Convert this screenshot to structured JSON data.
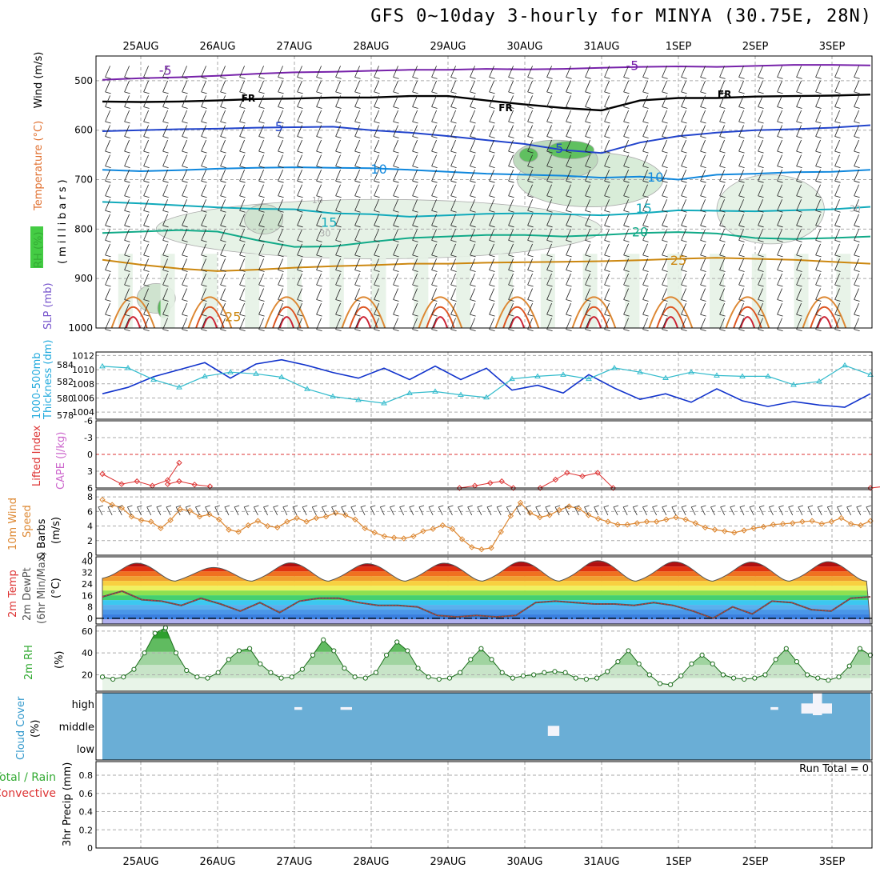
{
  "page": {
    "title": "GFS 0~10day 3-hourly for MINYA (30.75E, 28N)"
  },
  "chart_data": [
    {
      "panel": "upper-air",
      "type": "line",
      "ylabels": [
        {
          "text": "RH (%)",
          "color": "#33aa33"
        },
        {
          "text": "Temperature (°C)",
          "color": "#e07030"
        },
        {
          "text": "Wind (m/s)",
          "color": "#000000"
        },
        {
          "text": "(millibars)",
          "color": "#000000"
        }
      ],
      "x_dates": [
        "25AUG",
        "26AUG",
        "27AUG",
        "28AUG",
        "29AUG",
        "30AUG",
        "31AUG",
        "1SEP",
        "2SEP",
        "3SEP"
      ],
      "x_days": [
        0.5,
        1.5,
        2.5,
        3.5,
        4.5,
        5.5,
        6.5,
        7.5,
        8.5,
        9.5
      ],
      "xlim": [
        0,
        10
      ],
      "yticks": [
        500,
        600,
        700,
        800,
        900,
        1000
      ],
      "ylim": [
        450,
        1000
      ],
      "isotherms": [
        {
          "label": "-5",
          "color": "#7722aa",
          "y": [
            498,
            495,
            493,
            490,
            486,
            483,
            482,
            480,
            478,
            478,
            476,
            477,
            476,
            474,
            472,
            471,
            472,
            470,
            468,
            468,
            469
          ]
        },
        {
          "label": "FR",
          "color": "#000000",
          "y": [
            542,
            543,
            542,
            540,
            537,
            536,
            534,
            534,
            531,
            531,
            540,
            548,
            555,
            560,
            540,
            535,
            535,
            532,
            531,
            530,
            528
          ]
        },
        {
          "label": "5",
          "color": "#2244cc",
          "y": [
            602,
            600,
            598,
            597,
            595,
            594,
            593,
            600,
            605,
            612,
            620,
            628,
            640,
            646,
            625,
            612,
            605,
            600,
            598,
            595,
            590
          ]
        },
        {
          "label": "10",
          "color": "#1188dd",
          "y": [
            680,
            683,
            681,
            678,
            676,
            675,
            676,
            677,
            680,
            684,
            688,
            690,
            692,
            696,
            694,
            700,
            690,
            688,
            685,
            684,
            680
          ]
        },
        {
          "label": "15",
          "color": "#11aabb",
          "y": [
            745,
            748,
            752,
            756,
            759,
            760,
            768,
            770,
            775,
            772,
            769,
            768,
            770,
            772,
            768,
            762,
            763,
            764,
            762,
            760,
            755
          ]
        },
        {
          "label": "20",
          "color": "#11aa88",
          "y": [
            808,
            805,
            802,
            805,
            822,
            836,
            835,
            826,
            818,
            815,
            812,
            812,
            815,
            812,
            808,
            806,
            809,
            818,
            820,
            818,
            815
          ]
        },
        {
          "label": "25",
          "color": "#cc8811",
          "y": [
            862,
            872,
            880,
            885,
            882,
            878,
            875,
            873,
            870,
            870,
            868,
            867,
            866,
            865,
            863,
            860,
            858,
            860,
            862,
            866,
            870
          ]
        }
      ],
      "annotations": [
        "-5",
        "-5",
        "FR",
        "FR",
        "FR",
        "5",
        "5",
        "10",
        "10",
        "15",
        "15",
        "20",
        "25",
        "25",
        "10",
        "30",
        "30"
      ]
    },
    {
      "panel": "slp-thickness",
      "type": "line",
      "ylabels": [
        {
          "text": "1000-500mb",
          "color": "#22aadd"
        },
        {
          "text": "Thickness (dm)",
          "color": "#22aadd"
        },
        {
          "text": "SLP (mb)",
          "color": "#7755cc"
        }
      ],
      "yticks_left": [
        "578",
        "580",
        "582",
        "584"
      ],
      "yticks_right": [
        "1004",
        "1006",
        "1008",
        "1010",
        "1012"
      ],
      "ylim_left": [
        577.5,
        585.5
      ],
      "ylim_right": [
        1003,
        1012.5
      ],
      "series": [
        {
          "color": "#1133cc",
          "values": [
            1006.6,
            1007.5,
            1009,
            1010,
            1011,
            1008.8,
            1010.8,
            1011.4,
            1010.6,
            1009.6,
            1008.8,
            1010.2,
            1008.6,
            1010.5,
            1008.6,
            1010.2,
            1007.1,
            1007.8,
            1006.7,
            1009.3,
            1007.4,
            1005.8,
            1006.6,
            1005.4,
            1007.3,
            1005.6,
            1004.8,
            1005.5,
            1005,
            1004.7,
            1006.6
          ]
        },
        {
          "color": "#33bbcc",
          "values": [
            583.8,
            583.6,
            582.2,
            581.3,
            582.6,
            583.1,
            582.9,
            582.5,
            581.1,
            580.2,
            579.8,
            579.4,
            580.6,
            580.8,
            580.4,
            580.1,
            582.3,
            582.6,
            582.8,
            582.3,
            583.6,
            583.1,
            582.4,
            583.1,
            582.7,
            582.6,
            582.6,
            581.6,
            582.0,
            583.9,
            582.8
          ]
        }
      ]
    },
    {
      "panel": "lifted-index",
      "type": "line",
      "ylabels": [
        {
          "text": "Lifted Index",
          "color": "#dd3333"
        },
        {
          "text": "CAPE (J/kg)",
          "color": "#cc66cc"
        }
      ],
      "yticks": [
        "-6",
        "-3",
        "0",
        "3",
        "6"
      ],
      "ylim": [
        -6,
        6
      ],
      "series": [
        {
          "color": "#dd3333",
          "segments": [
            {
              "x": [
                0,
                0.25,
                0.45,
                0.65,
                0.85,
                1.0
              ],
              "y": [
                3.5,
                5.3,
                4.8,
                5.6,
                4.6,
                1.5
              ]
            },
            {
              "x": [
                0.85,
                1.0,
                1.2,
                1.4
              ],
              "y": [
                5.3,
                4.8,
                5.4,
                5.7
              ]
            },
            {
              "x": [
                4.65,
                4.85,
                5.05,
                5.2,
                5.35
              ],
              "y": [
                6,
                5.6,
                5.1,
                4.8,
                6
              ]
            },
            {
              "x": [
                5.7,
                5.9,
                6.05,
                6.25,
                6.45,
                6.65
              ],
              "y": [
                6,
                4.5,
                3.3,
                3.9,
                3.3,
                6
              ]
            },
            {
              "x": [
                10.0,
                10.2
              ],
              "y": [
                6,
                5.7
              ]
            }
          ]
        }
      ]
    },
    {
      "panel": "10m-wind",
      "type": "line",
      "ylabels": [
        {
          "text": "10m Wind",
          "color": "#dd8833"
        },
        {
          "text": "Speed",
          "color": "#dd8833"
        },
        {
          "text": "& Barbs",
          "color": "#000000"
        },
        {
          "text": "(m/s)",
          "color": "#000000"
        }
      ],
      "yticks": [
        "0",
        "2",
        "4",
        "6",
        "8"
      ],
      "ylim": [
        0,
        9
      ],
      "series": [
        {
          "color": "#dd8833",
          "values": [
            7.6,
            6.9,
            6.5,
            5.3,
            4.8,
            4.6,
            3.7,
            4.8,
            6.3,
            6.1,
            5.3,
            5.6,
            4.9,
            3.5,
            3.2,
            4.1,
            4.7,
            4.0,
            3.8,
            4.6,
            5.1,
            4.6,
            5.1,
            5.3,
            5.8,
            5.5,
            4.9,
            3.7,
            3.1,
            2.6,
            2.4,
            2.3,
            2.6,
            3.3,
            3.6,
            4.1,
            3.6,
            2.2,
            1.1,
            0.8,
            1.0,
            3.2,
            5.4,
            7.2,
            5.8,
            5.2,
            5.5,
            6.2,
            6.7,
            6.4,
            5.5,
            5.0,
            4.6,
            4.2,
            4.2,
            4.4,
            4.6,
            4.6,
            4.9,
            5.2,
            4.9,
            4.4,
            3.8,
            3.5,
            3.3,
            3.1,
            3.4,
            3.7,
            3.9,
            4.2,
            4.3,
            4.4,
            4.6,
            4.7,
            4.3,
            4.6,
            5.1,
            4.3,
            4.1,
            4.7
          ]
        }
      ]
    },
    {
      "panel": "2m-temp",
      "type": "area",
      "ylabels": [
        {
          "text": "2m Temp",
          "color": "#dd3333"
        },
        {
          "text": "2m DewPt",
          "color": "#555555"
        },
        {
          "text": "(6hr Min/Max)",
          "color": "#555555"
        },
        {
          "text": "(°C)",
          "color": "#000000"
        }
      ],
      "yticks": [
        "0",
        "8",
        "16",
        "24",
        "32",
        "40"
      ],
      "ylim": [
        -4,
        43
      ],
      "temp_max": [
        38.5,
        35.5,
        38.7,
        38.2,
        38.5,
        39.5,
        40.3,
        39.5,
        39.3,
        39.6
      ],
      "temp_min": [
        24,
        24,
        24,
        24,
        24,
        24,
        24,
        24,
        24,
        24
      ],
      "dewpoint": [
        15,
        19,
        13,
        12,
        9,
        14,
        10,
        5,
        11,
        4,
        12,
        14,
        14,
        11,
        9,
        9,
        8,
        2,
        1,
        2,
        1,
        2,
        11,
        12,
        11,
        10,
        10,
        9,
        11,
        9,
        5,
        0,
        8,
        3,
        12,
        11,
        6,
        5,
        14,
        15
      ],
      "color_bands": [
        "#b0b0ee",
        "#3a7fe0",
        "#4a96e8",
        "#5ab0ee",
        "#3cc8f0",
        "#44d070",
        "#8ee050",
        "#f0f060",
        "#f8d040",
        "#f0a030",
        "#f07020",
        "#e03010",
        "#b01010",
        "#7a0000"
      ]
    },
    {
      "panel": "2m-rh",
      "type": "area",
      "ylabels": [
        {
          "text": "2m RH",
          "color": "#33aa33"
        },
        {
          "text": "(%)",
          "color": "#000000"
        }
      ],
      "yticks": [
        "20",
        "40",
        "60"
      ],
      "ylim": [
        5,
        65
      ],
      "values": [
        18,
        16,
        18,
        25,
        40,
        58,
        63,
        40,
        24,
        18,
        17,
        22,
        34,
        42,
        44,
        30,
        22,
        17,
        18,
        25,
        38,
        52,
        42,
        26,
        18,
        17,
        22,
        38,
        50,
        42,
        26,
        18,
        16,
        17,
        22,
        34,
        44,
        34,
        22,
        17,
        19,
        20,
        22,
        23,
        22,
        17,
        16,
        17,
        23,
        32,
        42,
        30,
        20,
        12,
        11,
        19,
        30,
        38,
        30,
        20,
        17,
        16,
        17,
        20,
        34,
        44,
        32,
        20,
        17,
        15,
        18,
        28,
        44,
        38
      ]
    },
    {
      "panel": "cloud-cover",
      "type": "heatmap",
      "ylabels": [
        {
          "text": "Cloud Cover",
          "color": "#3399cc"
        },
        {
          "text": "(%)",
          "color": "#000000"
        }
      ],
      "levels": [
        "high",
        "middle",
        "low"
      ],
      "background_color": "#6aaed6",
      "clear_color": "#f4f4fa",
      "clear_cells": [
        {
          "level": "high",
          "x": [
            2.5,
            2.6
          ],
          "frac": 0.12
        },
        {
          "level": "high",
          "x": [
            3.1,
            3.25
          ],
          "frac": 0.12
        },
        {
          "level": "middle",
          "x": [
            5.8,
            5.95
          ],
          "frac": 0.45
        },
        {
          "level": "high",
          "x": [
            8.7,
            8.8
          ],
          "frac": 0.12
        },
        {
          "level": "high",
          "x": [
            9.1,
            9.5
          ],
          "frac": 0.45
        },
        {
          "level": "high",
          "x": [
            9.25,
            9.37
          ],
          "frac": 1.0
        }
      ]
    },
    {
      "panel": "precip",
      "type": "bar",
      "ylabels": [
        {
          "text": "Total / Rain",
          "color": "#33aa33"
        },
        {
          "text": "Convective",
          "color": "#dd3333"
        },
        {
          "text": "3hr Precip (mm)",
          "color": "#000000"
        }
      ],
      "yticks": [
        "0",
        "0.2",
        "0.4",
        "0.6",
        "0.8"
      ],
      "ylim": [
        0,
        0.95
      ],
      "run_total": "Run Total = 0",
      "values": []
    }
  ]
}
